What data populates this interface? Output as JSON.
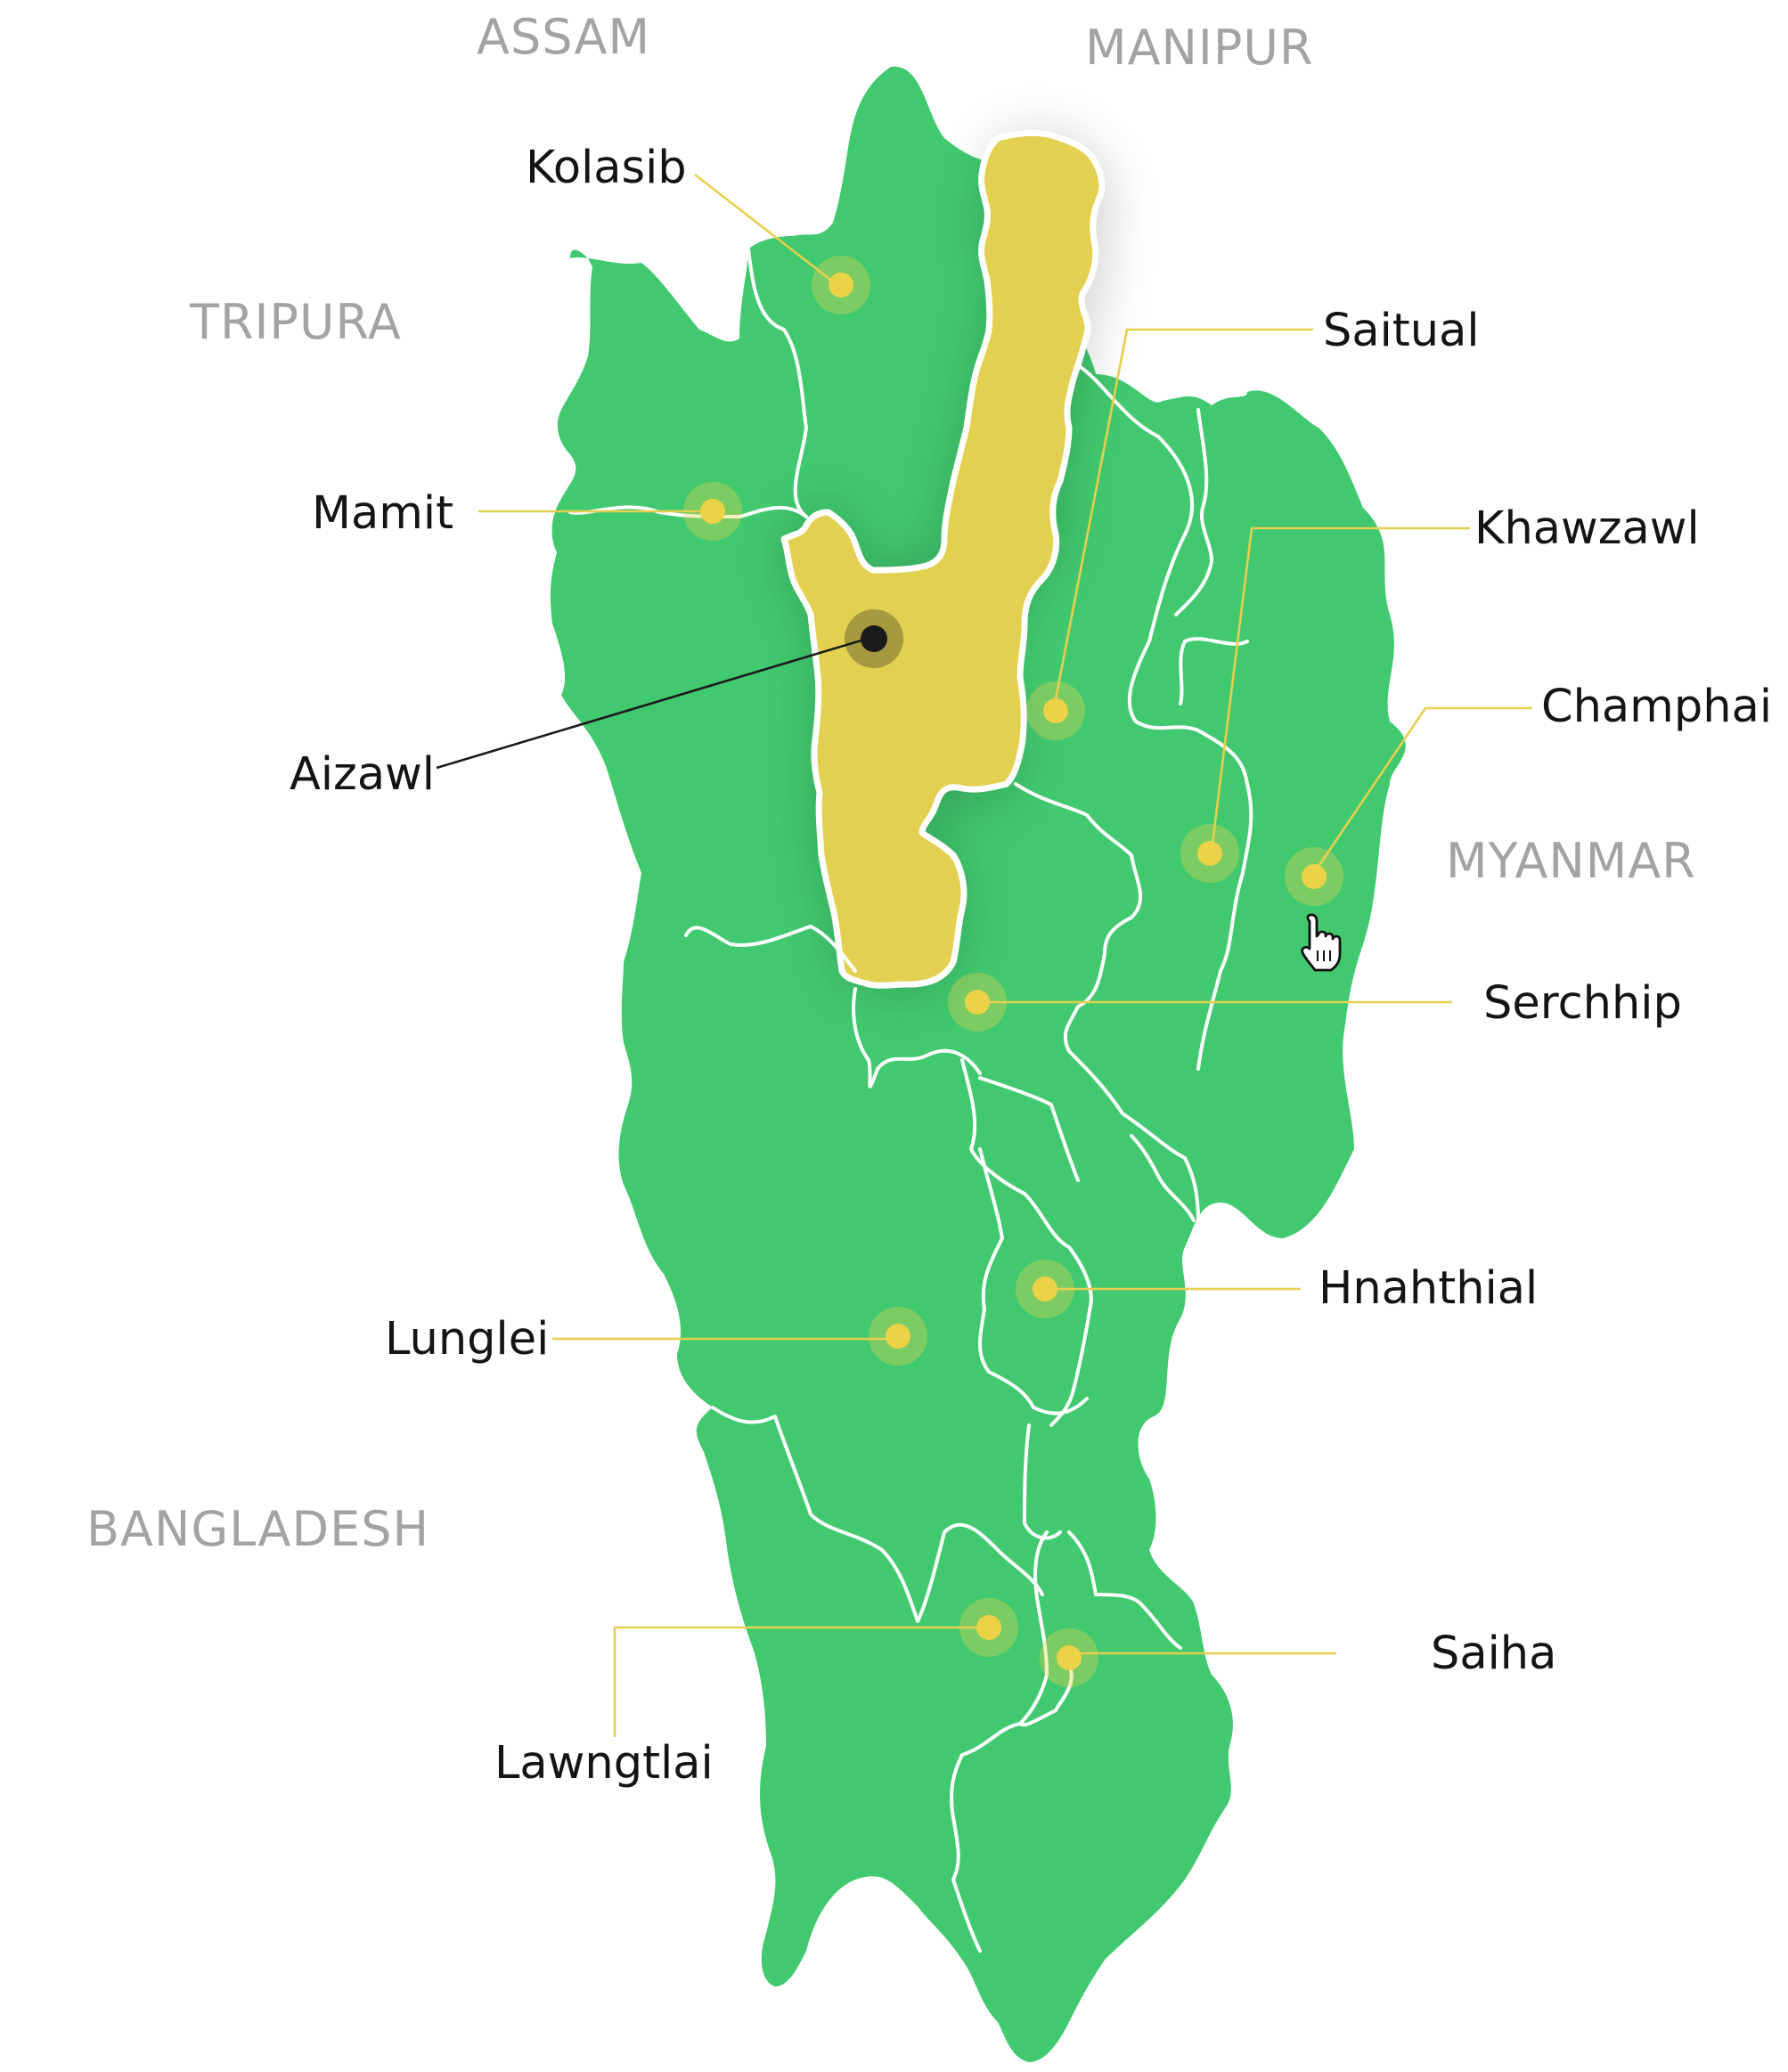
{
  "map": {
    "colors": {
      "state_fill": "#42c96f",
      "selected_fill": "#e3d050",
      "marker": "#ecd246",
      "selected_marker": "#1b1b1b",
      "neighbor_text": "#a3a3a3"
    },
    "neighbors": {
      "assam": "ASSAM",
      "manipur": "MANIPUR",
      "tripura": "TRIPURA",
      "myanmar": "MYANMAR",
      "bangladesh": "BANGLADESH"
    },
    "selected_district": "Aizawl",
    "districts": {
      "kolasib": "Kolasib",
      "mamit": "Mamit",
      "aizawl": "Aizawl",
      "saitual": "Saitual",
      "khawzawl": "Khawzawl",
      "champhai": "Champhai",
      "serchhip": "Serchhip",
      "hnahthial": "Hnahthial",
      "lunglei": "Lunglei",
      "lawngtlai": "Lawngtlai",
      "saiha": "Saiha"
    },
    "cursor_icon": "hand-pointer-icon"
  }
}
